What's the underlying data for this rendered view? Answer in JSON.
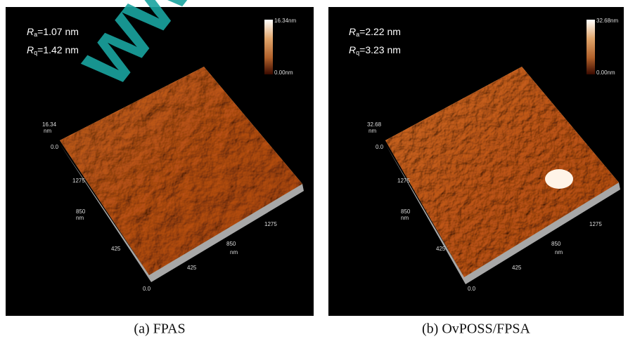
{
  "watermark": "www",
  "panels": [
    {
      "caption": "(a)  FPAS",
      "roughness": [
        {
          "symbol": "R",
          "subscript": "a",
          "value": "=1.07 nm"
        },
        {
          "symbol": "R",
          "subscript": "q",
          "value": "=1.42 nm"
        }
      ],
      "colorbar": {
        "max": "16.34nm",
        "min": "0.00nm"
      },
      "z_axis": {
        "max": "16.34",
        "unit": "nm",
        "min": "0.0"
      },
      "y_axis": {
        "ticks": [
          "1275",
          "850",
          "425"
        ],
        "unit": "nm"
      },
      "x_axis": {
        "origin": "0.0",
        "ticks": [
          "425",
          "850",
          "1275"
        ],
        "unit": "nm"
      }
    },
    {
      "caption": "(b)   OvPOSS/FPSA",
      "roughness": [
        {
          "symbol": "R",
          "subscript": "a",
          "value": "=2.22 nm"
        },
        {
          "symbol": "R",
          "subscript": "q",
          "value": "=3.23 nm"
        }
      ],
      "colorbar": {
        "max": "32.68nm",
        "min": "0.00nm"
      },
      "z_axis": {
        "max": "32.68",
        "unit": "nm",
        "min": "0.0"
      },
      "y_axis": {
        "ticks": [
          "1275",
          "850",
          "425"
        ],
        "unit": "nm"
      },
      "x_axis": {
        "origin": "0.0",
        "ticks": [
          "425",
          "850",
          "1275"
        ],
        "unit": "nm"
      }
    }
  ]
}
